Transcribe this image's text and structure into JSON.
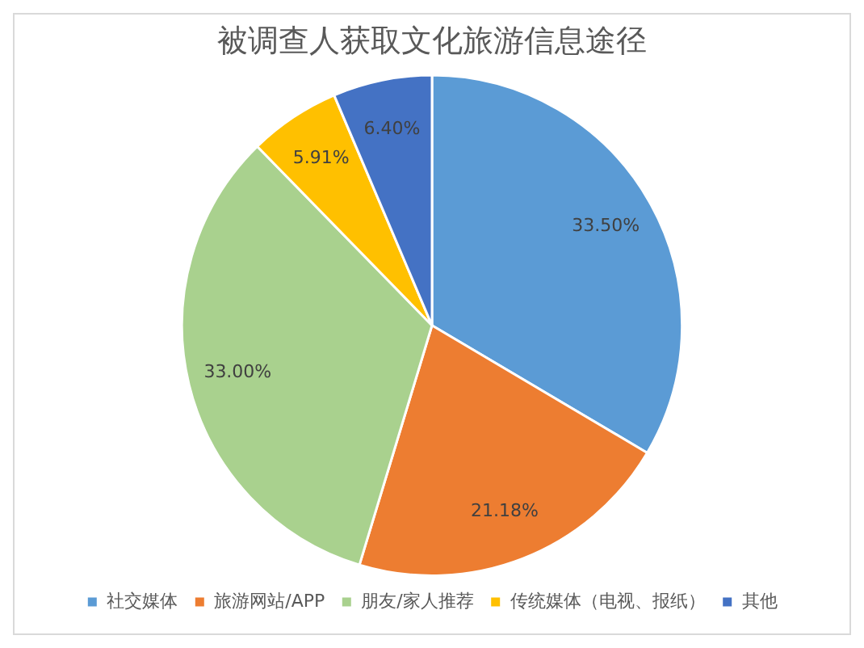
{
  "chart_data": {
    "type": "pie",
    "title": "被调查人获取文化旅游信息途径",
    "categories": [
      "社交媒体",
      "旅游网站/APP",
      "朋友/家人推荐",
      "传统媒体（电视、报纸）",
      "其他"
    ],
    "values": [
      33.5,
      21.18,
      33.0,
      5.91,
      6.4
    ],
    "value_labels": [
      "33.50%",
      "21.18%",
      "33.00%",
      "5.91%",
      "6.40%"
    ],
    "colors": [
      "#5b9bd5",
      "#ed7d31",
      "#a9d18e",
      "#ffc000",
      "#4472c4"
    ],
    "legend": "bottom"
  }
}
